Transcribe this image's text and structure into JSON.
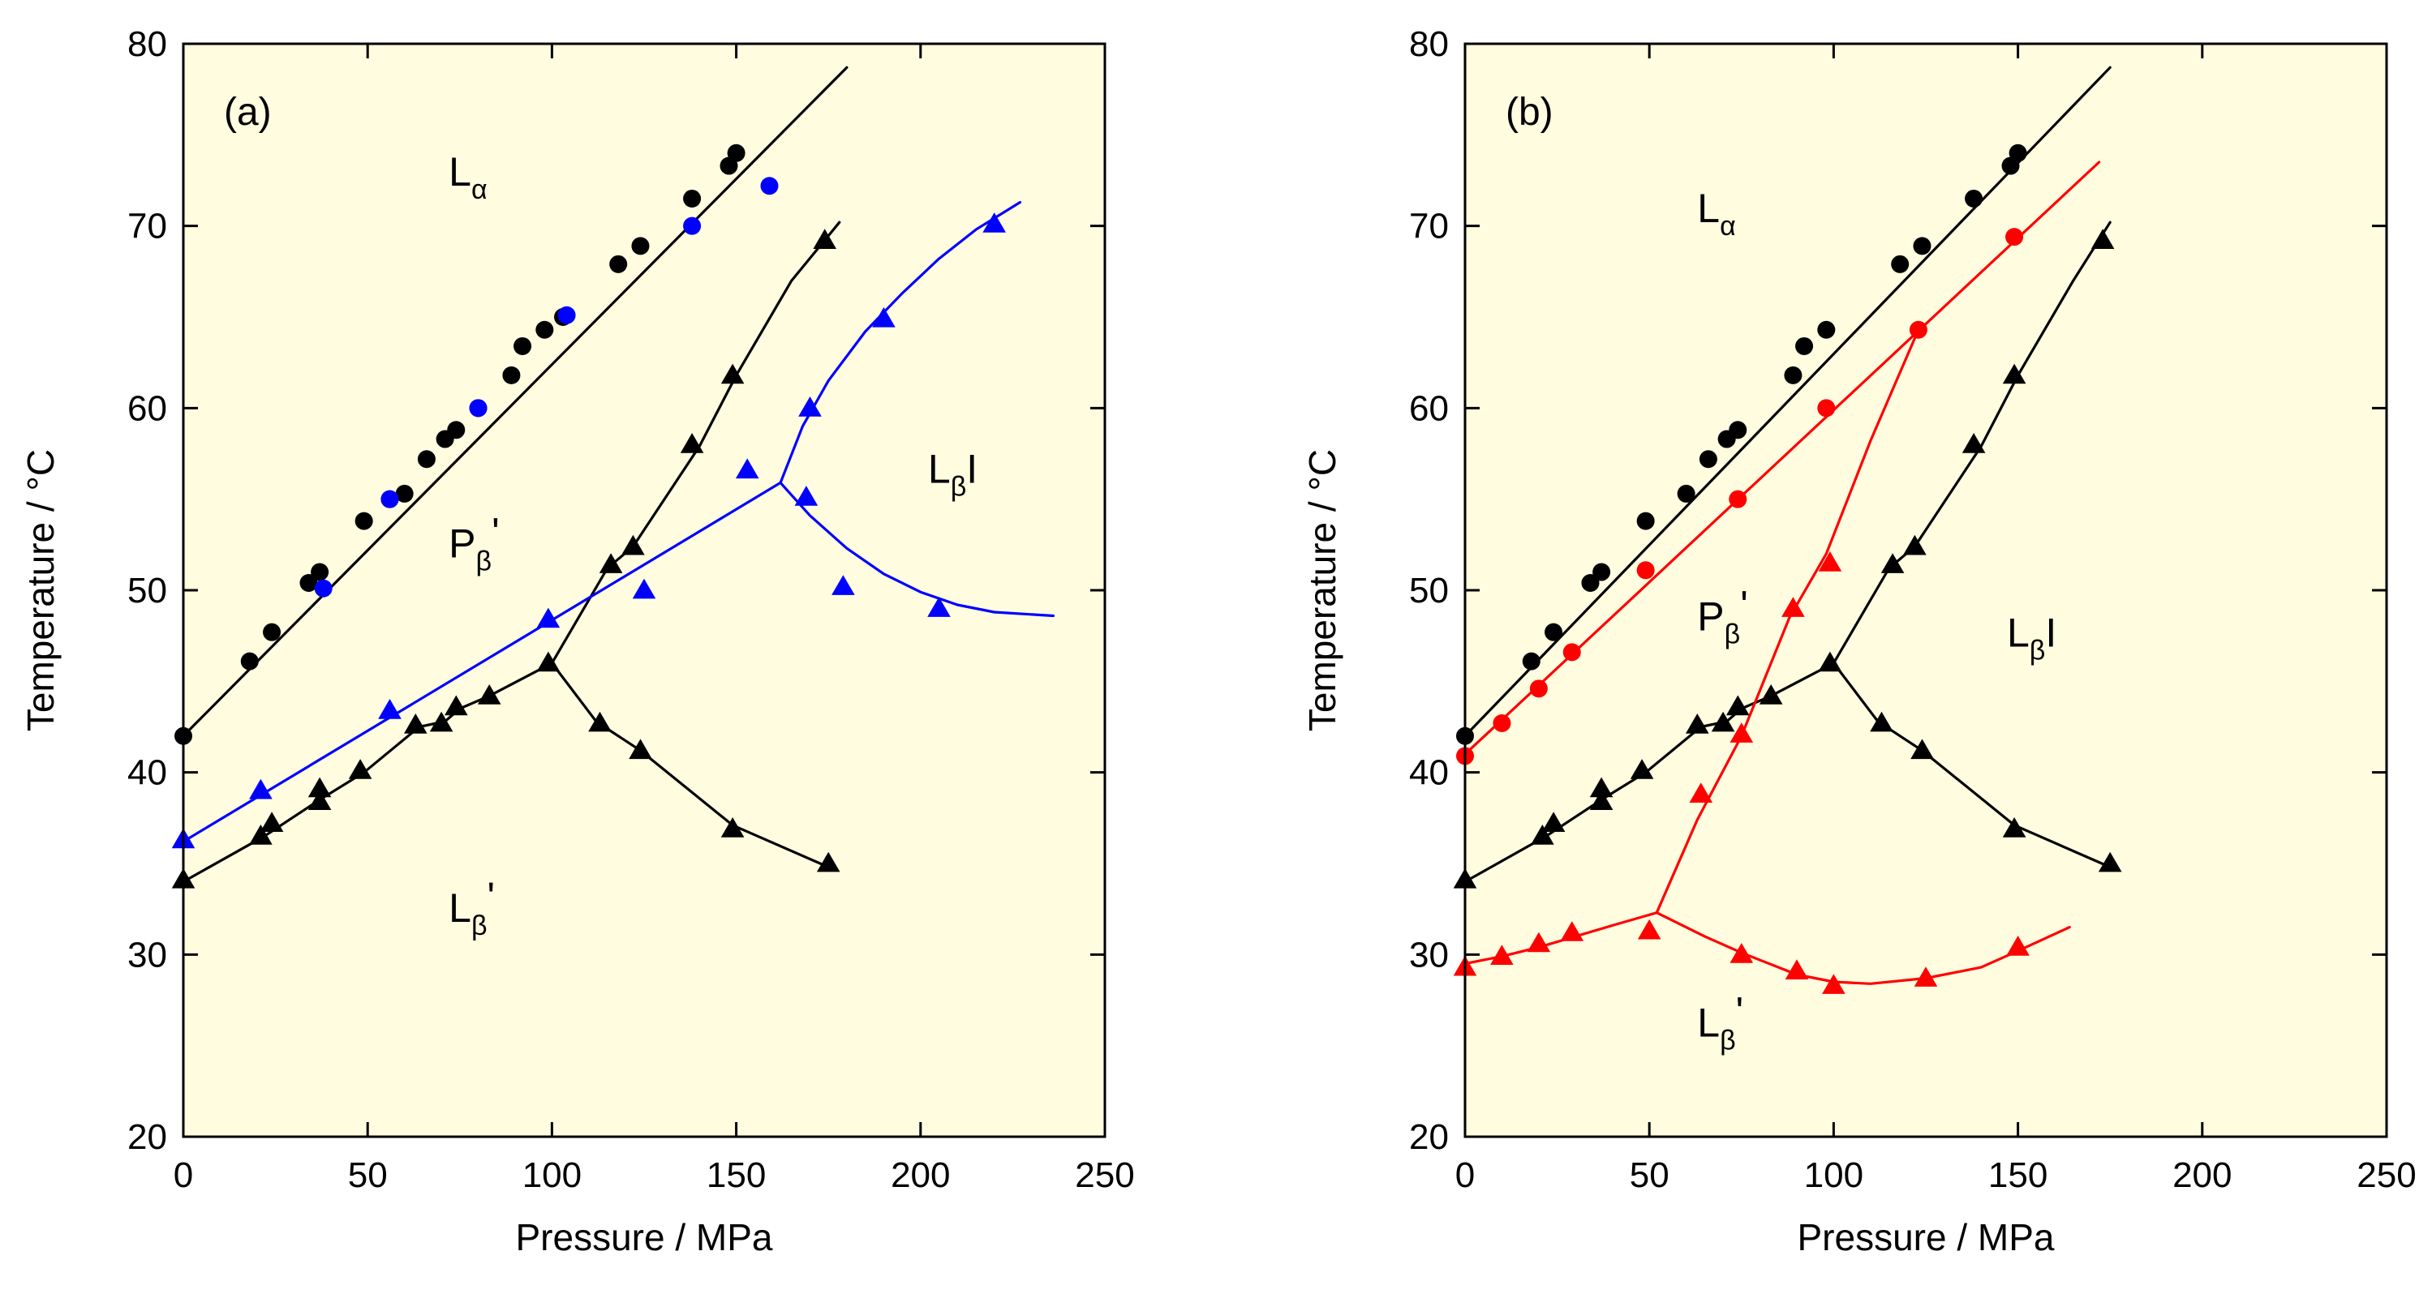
{
  "chart_data": [
    {
      "type": "line",
      "panel_label": "(a)",
      "xlabel": "Pressure / MPa",
      "ylabel": "Temperature / °C",
      "xlim": [
        0,
        250
      ],
      "ylim": [
        20,
        80
      ],
      "xticks": [
        "0",
        "50",
        "100",
        "150",
        "200",
        "250"
      ],
      "yticks": [
        "20",
        "30",
        "40",
        "50",
        "60",
        "70",
        "80"
      ],
      "plot_background": "#fffce0",
      "grid": false,
      "phase_labels": [
        {
          "main": "L",
          "sub": "α",
          "suffix": "",
          "x": 72,
          "y": 72.2
        },
        {
          "main": "P",
          "sub": "β",
          "suffix": "'",
          "x": 72,
          "y": 51.8
        },
        {
          "main": "L",
          "sub": "β",
          "suffix": "I",
          "x": 202,
          "y": 55.9
        },
        {
          "main": "L",
          "sub": "β",
          "suffix": "'",
          "x": 72,
          "y": 31.8
        }
      ],
      "series": [
        {
          "color": "#000000",
          "marker": "none",
          "x": [
            0,
            180
          ],
          "y": [
            42,
            78.7
          ]
        },
        {
          "color": "#000000",
          "marker": "circle",
          "x": [
            0,
            18,
            24,
            34,
            37,
            49,
            56,
            60,
            66,
            71,
            74,
            80,
            89,
            92,
            98,
            103,
            118,
            124,
            138,
            148,
            150
          ],
          "y": [
            42.0,
            46.1,
            47.7,
            50.4,
            51.0,
            53.8,
            55.0,
            55.3,
            57.2,
            58.3,
            58.8,
            60.0,
            61.8,
            63.4,
            64.3,
            65.0,
            67.9,
            68.9,
            71.5,
            73.3,
            74.0
          ]
        },
        {
          "color": "#0000ff",
          "marker": "circle",
          "x": [
            38,
            56,
            80,
            104,
            138,
            159
          ],
          "y": [
            50.1,
            55.0,
            60.0,
            65.1,
            70.0,
            72.2
          ]
        },
        {
          "color": "#000000",
          "marker": "none",
          "x": [
            0,
            22,
            37,
            49,
            64,
            71,
            75,
            83,
            100,
            112,
            124,
            149,
            175
          ],
          "y": [
            34.0,
            36.5,
            38.5,
            40.0,
            42.5,
            42.8,
            43.5,
            44.2,
            46.0,
            42.8,
            41.2,
            37.1,
            34.8
          ]
        },
        {
          "color": "#000000",
          "marker": "none",
          "x": [
            100,
            115,
            122,
            140,
            150,
            165,
            178
          ],
          "y": [
            46.0,
            51.2,
            52.4,
            57.9,
            61.8,
            67.0,
            70.2
          ]
        },
        {
          "color": "#000000",
          "marker": "triangle",
          "x": [
            0,
            21,
            24,
            37,
            37,
            48,
            63,
            70,
            74,
            83,
            99,
            113,
            124,
            149,
            175,
            116,
            122,
            138,
            149,
            174
          ],
          "y": [
            34.1,
            36.5,
            37.2,
            38.4,
            39.1,
            40.1,
            42.6,
            42.7,
            43.6,
            44.2,
            46.0,
            42.7,
            41.2,
            36.9,
            35.0,
            51.4,
            52.4,
            58.0,
            61.8,
            69.2
          ]
        },
        {
          "color": "#0000ff",
          "marker": "none",
          "x": [
            0,
            162
          ],
          "y": [
            36.2,
            55.9
          ]
        },
        {
          "color": "#0000ff",
          "marker": "none",
          "x": [
            162,
            168,
            175,
            185,
            195,
            205,
            215,
            227
          ],
          "y": [
            55.9,
            59.0,
            61.5,
            64.2,
            66.3,
            68.2,
            69.8,
            71.3
          ]
        },
        {
          "color": "#0000ff",
          "marker": "none",
          "x": [
            162,
            170,
            180,
            190,
            200,
            210,
            220,
            236
          ],
          "y": [
            55.9,
            54.1,
            52.3,
            50.9,
            49.9,
            49.2,
            48.8,
            48.6
          ]
        },
        {
          "color": "#0000ff",
          "marker": "triangle",
          "x": [
            0,
            21,
            56,
            99,
            125,
            153,
            169,
            170,
            179,
            190,
            205,
            220
          ],
          "y": [
            36.3,
            39.0,
            43.4,
            48.4,
            50.0,
            56.6,
            55.1,
            60.0,
            50.2,
            64.9,
            49.0,
            70.1
          ]
        }
      ]
    },
    {
      "type": "line",
      "panel_label": "(b)",
      "xlabel": "Pressure / MPa",
      "ylabel": "Temperature / °C",
      "xlim": [
        0,
        250
      ],
      "ylim": [
        20,
        80
      ],
      "xticks": [
        "0",
        "50",
        "100",
        "150",
        "200",
        "250"
      ],
      "yticks": [
        "20",
        "30",
        "40",
        "50",
        "60",
        "70",
        "80"
      ],
      "plot_background": "#fffce0",
      "grid": false,
      "phase_labels": [
        {
          "main": "L",
          "sub": "α",
          "suffix": "",
          "x": 63,
          "y": 70.2
        },
        {
          "main": "P",
          "sub": "β",
          "suffix": "'",
          "x": 63,
          "y": 47.8
        },
        {
          "main": "L",
          "sub": "β",
          "suffix": "I",
          "x": 147,
          "y": 46.9
        },
        {
          "main": "L",
          "sub": "β",
          "suffix": "'",
          "x": 63,
          "y": 25.5
        }
      ],
      "series": [
        {
          "color": "#000000",
          "marker": "none",
          "x": [
            0,
            175
          ],
          "y": [
            42,
            78.7
          ]
        },
        {
          "color": "#000000",
          "marker": "circle",
          "x": [
            0,
            18,
            24,
            34,
            37,
            49,
            60,
            66,
            71,
            74,
            89,
            92,
            98,
            118,
            124,
            138,
            148,
            150
          ],
          "y": [
            42.0,
            46.1,
            47.7,
            50.4,
            51.0,
            53.8,
            55.3,
            57.2,
            58.3,
            58.8,
            61.8,
            63.4,
            64.3,
            67.9,
            68.9,
            71.5,
            73.3,
            74.0
          ]
        },
        {
          "color": "#ff0000",
          "marker": "none",
          "x": [
            0,
            172
          ],
          "y": [
            41.0,
            73.5
          ]
        },
        {
          "color": "#ff0000",
          "marker": "circle",
          "x": [
            0,
            10,
            20,
            29,
            49,
            74,
            98,
            123,
            149
          ],
          "y": [
            40.9,
            42.7,
            44.6,
            46.6,
            51.1,
            55.0,
            60.0,
            64.3,
            69.4
          ]
        },
        {
          "color": "#000000",
          "marker": "none",
          "x": [
            0,
            22,
            37,
            49,
            64,
            71,
            75,
            83,
            100,
            112,
            124,
            149,
            175
          ],
          "y": [
            34.0,
            36.5,
            38.5,
            40.0,
            42.5,
            42.8,
            43.5,
            44.2,
            46.0,
            42.8,
            41.2,
            37.1,
            34.8
          ]
        },
        {
          "color": "#000000",
          "marker": "none",
          "x": [
            100,
            115,
            122,
            140,
            150,
            165,
            175
          ],
          "y": [
            46.0,
            51.2,
            52.4,
            57.9,
            61.8,
            67.0,
            70.2
          ]
        },
        {
          "color": "#000000",
          "marker": "triangle",
          "x": [
            0,
            21,
            24,
            37,
            37,
            48,
            63,
            70,
            74,
            83,
            99,
            113,
            124,
            149,
            175,
            116,
            122,
            138,
            149,
            173
          ],
          "y": [
            34.1,
            36.5,
            37.2,
            38.4,
            39.1,
            40.1,
            42.6,
            42.7,
            43.6,
            44.2,
            46.0,
            42.7,
            41.2,
            36.9,
            35.0,
            51.4,
            52.4,
            58.0,
            61.8,
            69.2
          ]
        },
        {
          "color": "#ff0000",
          "marker": "none",
          "x": [
            0,
            10,
            20,
            30,
            40,
            52,
            65,
            75,
            90,
            100,
            110,
            125,
            140,
            150,
            164
          ],
          "y": [
            29.5,
            29.9,
            30.4,
            31.0,
            31.6,
            32.3,
            31.0,
            30.1,
            28.9,
            28.5,
            28.4,
            28.7,
            29.3,
            30.2,
            31.5
          ]
        },
        {
          "color": "#ff0000",
          "marker": "none",
          "x": [
            52,
            63,
            75,
            88,
            98,
            110,
            123
          ],
          "y": [
            32.3,
            37.4,
            42.0,
            48.5,
            52.0,
            58.2,
            64.3
          ]
        },
        {
          "color": "#ff0000",
          "marker": "triangle",
          "x": [
            0,
            10,
            20,
            29,
            50,
            64,
            75,
            90,
            100,
            125,
            150,
            75,
            89,
            99
          ],
          "y": [
            29.3,
            29.9,
            30.6,
            31.2,
            31.3,
            38.8,
            30.0,
            29.1,
            28.3,
            28.7,
            30.4,
            42.1,
            49.0,
            51.5
          ]
        }
      ]
    }
  ]
}
